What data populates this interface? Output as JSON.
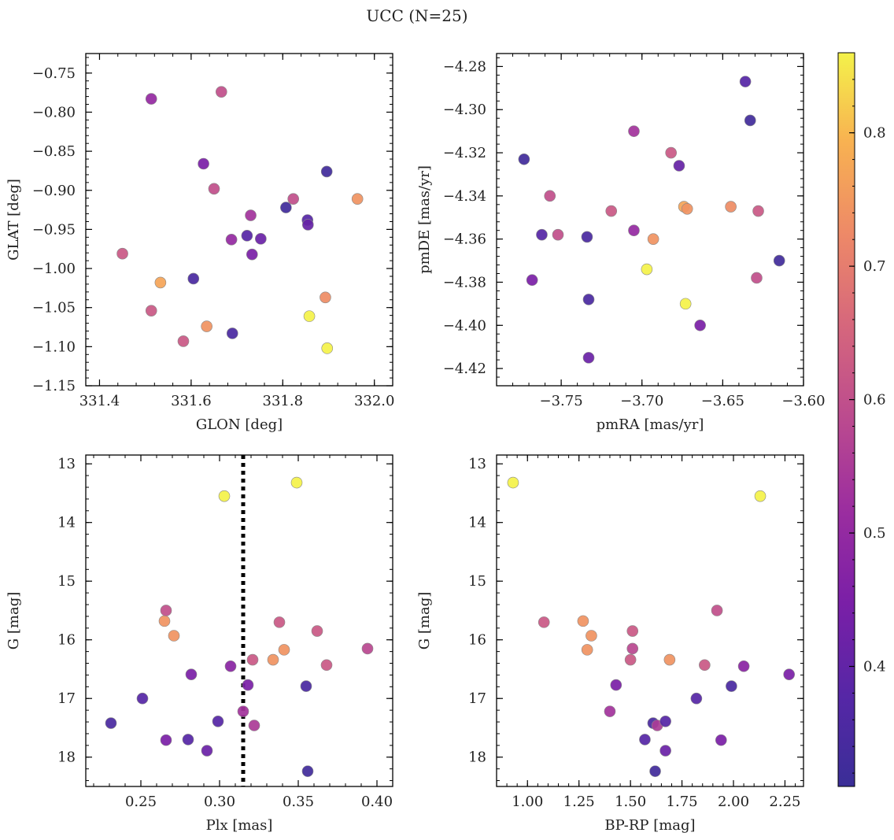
{
  "figure": {
    "title": "UCC (N=25)",
    "colorbar_ticks": [
      "0.4",
      "0.5",
      "0.6",
      "0.7",
      "0.8"
    ],
    "colormap": "plasma",
    "marker_edge_color": "#888888",
    "reference_line_color": "#000000"
  },
  "chart_data": [
    {
      "type": "scatter",
      "xlabel": "GLON [deg]",
      "ylabel": "GLAT [deg]",
      "xlim": [
        331.37,
        332.04
      ],
      "ylim": [
        -1.15,
        -0.725
      ],
      "xticks": [
        331.4,
        331.6,
        331.8,
        332.0
      ],
      "xtick_labels": [
        "331.4",
        "331.6",
        "331.8",
        "332.0"
      ],
      "yticks": [
        -1.15,
        -1.1,
        -1.05,
        -1.0,
        -0.95,
        -0.9,
        -0.85,
        -0.8,
        -0.75
      ],
      "ytick_labels": [
        "−1.15",
        "−1.10",
        "−1.05",
        "−1.00",
        "−0.95",
        "−0.90",
        "−0.85",
        "−0.80",
        "−0.75"
      ],
      "x": [
        331.45,
        331.513,
        331.513,
        331.533,
        331.583,
        331.605,
        331.627,
        331.634,
        331.65,
        331.666,
        331.688,
        331.69,
        331.722,
        331.73,
        331.733,
        331.752,
        331.807,
        331.823,
        331.854,
        331.855,
        331.858,
        331.893,
        331.896,
        331.897,
        331.963
      ],
      "y": [
        -0.981,
        -0.783,
        -1.054,
        -1.018,
        -1.093,
        -1.013,
        -0.866,
        -1.074,
        -0.898,
        -0.774,
        -0.963,
        -1.083,
        -0.958,
        -0.932,
        -0.982,
        -0.962,
        -0.922,
        -0.911,
        -0.938,
        -0.944,
        -1.061,
        -1.037,
        -0.876,
        -1.102,
        -0.911
      ],
      "c": [
        0.62,
        0.5,
        0.62,
        0.77,
        0.62,
        0.35,
        0.45,
        0.74,
        0.6,
        0.6,
        0.5,
        0.35,
        0.38,
        0.53,
        0.45,
        0.42,
        0.33,
        0.6,
        0.38,
        0.41,
        0.86,
        0.73,
        0.33,
        0.86,
        0.74
      ]
    },
    {
      "type": "scatter",
      "xlabel": "pmRA [mas/yr]",
      "ylabel": "pmDE [mas/yr]",
      "xlim": [
        -3.79,
        -3.6
      ],
      "ylim": [
        -4.428,
        -4.274
      ],
      "xticks": [
        -3.75,
        -3.7,
        -3.65,
        -3.6
      ],
      "xtick_labels": [
        "−3.75",
        "−3.70",
        "−3.65",
        "−3.60"
      ],
      "yticks": [
        -4.42,
        -4.4,
        -4.38,
        -4.36,
        -4.34,
        -4.32,
        -4.3,
        -4.28
      ],
      "ytick_labels": [
        "−4.42",
        "−4.40",
        "−4.38",
        "−4.36",
        "−4.34",
        "−4.32",
        "−4.30",
        "−4.28"
      ],
      "x": [
        -3.773,
        -3.768,
        -3.762,
        -3.757,
        -3.752,
        -3.734,
        -3.733,
        -3.733,
        -3.719,
        -3.705,
        -3.705,
        -3.697,
        -3.693,
        -3.682,
        -3.677,
        -3.674,
        -3.673,
        -3.672,
        -3.664,
        -3.645,
        -3.636,
        -3.633,
        -3.629,
        -3.628,
        -3.615
      ],
      "y": [
        -4.323,
        -4.379,
        -4.358,
        -4.34,
        -4.358,
        -4.359,
        -4.388,
        -4.415,
        -4.347,
        -4.31,
        -4.356,
        -4.374,
        -4.36,
        -4.32,
        -4.326,
        -4.345,
        -4.39,
        -4.346,
        -4.4,
        -4.345,
        -4.287,
        -4.305,
        -4.378,
        -4.347,
        -4.37
      ],
      "c": [
        0.33,
        0.45,
        0.38,
        0.6,
        0.6,
        0.35,
        0.35,
        0.42,
        0.62,
        0.53,
        0.5,
        0.86,
        0.74,
        0.62,
        0.41,
        0.77,
        0.86,
        0.74,
        0.45,
        0.73,
        0.38,
        0.33,
        0.6,
        0.62,
        0.33
      ]
    },
    {
      "type": "scatter",
      "xlabel": "Plx [mas]",
      "ylabel": "G [mag]",
      "xlim": [
        0.215,
        0.41
      ],
      "ylim": [
        18.5,
        12.85
      ],
      "xticks": [
        0.25,
        0.3,
        0.35,
        0.4
      ],
      "xtick_labels": [
        "0.25",
        "0.30",
        "0.35",
        "0.40"
      ],
      "yticks": [
        13,
        14,
        15,
        16,
        17,
        18
      ],
      "ytick_labels": [
        "13",
        "14",
        "15",
        "16",
        "17",
        "18"
      ],
      "vline_x": 0.315,
      "x": [
        0.231,
        0.251,
        0.265,
        0.266,
        0.266,
        0.271,
        0.28,
        0.282,
        0.292,
        0.299,
        0.303,
        0.307,
        0.315,
        0.318,
        0.321,
        0.322,
        0.334,
        0.338,
        0.341,
        0.349,
        0.355,
        0.356,
        0.362,
        0.368,
        0.394
      ],
      "y": [
        17.42,
        17.0,
        15.68,
        15.5,
        17.71,
        15.93,
        17.7,
        16.59,
        17.89,
        17.39,
        13.55,
        16.45,
        17.22,
        16.77,
        16.34,
        17.46,
        16.34,
        15.7,
        16.17,
        13.32,
        16.79,
        18.24,
        15.85,
        16.43,
        16.15
      ],
      "c": [
        0.35,
        0.38,
        0.74,
        0.6,
        0.45,
        0.74,
        0.38,
        0.45,
        0.42,
        0.38,
        0.86,
        0.48,
        0.53,
        0.45,
        0.62,
        0.55,
        0.74,
        0.62,
        0.74,
        0.86,
        0.35,
        0.33,
        0.62,
        0.62,
        0.58
      ]
    },
    {
      "type": "scatter",
      "xlabel": "BP-RP [mag]",
      "ylabel": "G [mag]",
      "xlim": [
        0.85,
        2.34
      ],
      "ylim": [
        18.5,
        12.85
      ],
      "xticks": [
        1.0,
        1.25,
        1.5,
        1.75,
        2.0,
        2.25
      ],
      "xtick_labels": [
        "1.00",
        "1.25",
        "1.50",
        "1.75",
        "2.00",
        "2.25"
      ],
      "yticks": [
        13,
        14,
        15,
        16,
        17,
        18
      ],
      "ytick_labels": [
        "13",
        "14",
        "15",
        "16",
        "17",
        "18"
      ],
      "x": [
        0.93,
        1.08,
        1.27,
        1.29,
        1.31,
        1.4,
        1.43,
        1.5,
        1.51,
        1.51,
        1.57,
        1.61,
        1.62,
        1.63,
        1.67,
        1.67,
        1.69,
        1.82,
        1.86,
        1.92,
        1.94,
        1.99,
        2.05,
        2.13,
        2.27
      ],
      "y": [
        13.32,
        15.7,
        15.68,
        16.17,
        15.93,
        17.22,
        16.77,
        16.34,
        16.15,
        15.85,
        17.7,
        17.42,
        18.24,
        17.46,
        17.89,
        17.39,
        16.34,
        17.0,
        16.43,
        15.5,
        17.71,
        16.79,
        16.45,
        13.55,
        16.59
      ],
      "c": [
        0.86,
        0.62,
        0.74,
        0.74,
        0.74,
        0.53,
        0.45,
        0.62,
        0.58,
        0.62,
        0.38,
        0.35,
        0.33,
        0.55,
        0.42,
        0.38,
        0.74,
        0.38,
        0.62,
        0.6,
        0.45,
        0.35,
        0.48,
        0.86,
        0.45
      ]
    }
  ]
}
